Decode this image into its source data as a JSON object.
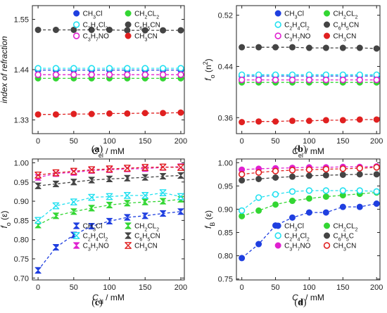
{
  "chart_data": [
    {
      "panel": "(a)",
      "type": "scatter",
      "xlabel_main": "C",
      "xlabel_sub": "el",
      "xlabel_rest": " / mM",
      "ylabel": "index of refraction",
      "ylabel_italic": true,
      "xlim": [
        -8,
        205
      ],
      "ylim": [
        1.3,
        1.58
      ],
      "xticks": [
        0,
        50,
        100,
        150,
        200
      ],
      "yticks": [
        "1.33",
        "1.44",
        "1.55"
      ],
      "ytick_values": [
        1.33,
        1.44,
        1.55
      ],
      "x": [
        0,
        25,
        50,
        75,
        100,
        125,
        150,
        175,
        200
      ],
      "legend": [
        {
          "text": "CH3Cl",
          "parts": [
            [
              "CH",
              ""
            ],
            [
              "3",
              "sub"
            ],
            [
              "Cl",
              ""
            ]
          ]
        },
        {
          "text": "CH2CL2",
          "parts": [
            [
              "CH",
              ""
            ],
            [
              "2",
              "sub"
            ],
            [
              "CL",
              ""
            ],
            [
              "2",
              "sub"
            ]
          ]
        },
        {
          "text": "C2H4Cl2",
          "parts": [
            [
              "C",
              ""
            ],
            [
              "2",
              "sub"
            ],
            [
              "H",
              ""
            ],
            [
              "4",
              "sub"
            ],
            [
              "Cl",
              ""
            ],
            [
              "2",
              "sub"
            ]
          ]
        },
        {
          "text": "C6H5CN",
          "parts": [
            [
              "C",
              ""
            ],
            [
              "6",
              "sub"
            ],
            [
              "H",
              ""
            ],
            [
              "5",
              "sub"
            ],
            [
              "CN",
              ""
            ]
          ]
        },
        {
          "text": "C3H7NO",
          "parts": [
            [
              "C",
              ""
            ],
            [
              "3",
              "sub"
            ],
            [
              "H",
              ""
            ],
            [
              "7",
              "sub"
            ],
            [
              "NO",
              ""
            ]
          ]
        },
        {
          "text": "CH3CN",
          "parts": [
            [
              "CH",
              ""
            ],
            [
              "3",
              "sub"
            ],
            [
              "CN",
              ""
            ]
          ]
        }
      ],
      "series": [
        {
          "name": "CH3Cl",
          "color": "#1f3fe0",
          "marker": "filled-circle",
          "values": [
            1.439,
            1.439,
            1.439,
            1.439,
            1.439,
            1.439,
            1.439,
            1.439,
            1.439
          ]
        },
        {
          "name": "CH2CL2",
          "color": "#33d633",
          "marker": "filled-circle",
          "values": [
            1.421,
            1.421,
            1.421,
            1.421,
            1.421,
            1.421,
            1.421,
            1.421,
            1.421
          ]
        },
        {
          "name": "C2H4Cl2",
          "color": "#22e0f0",
          "marker": "open-circle",
          "values": [
            1.443,
            1.443,
            1.443,
            1.443,
            1.443,
            1.443,
            1.443,
            1.443,
            1.443
          ]
        },
        {
          "name": "C6H5CN",
          "color": "#444444",
          "marker": "filled-circle",
          "values": [
            1.527,
            1.527,
            1.527,
            1.527,
            1.527,
            1.526,
            1.526,
            1.526,
            1.526
          ]
        },
        {
          "name": "C3H7NO",
          "color": "#e020d0",
          "marker": "open-circle",
          "values": [
            1.429,
            1.429,
            1.429,
            1.429,
            1.429,
            1.429,
            1.429,
            1.429,
            1.429
          ]
        },
        {
          "name": "CH3CN",
          "color": "#e02020",
          "marker": "filled-circle",
          "values": [
            1.342,
            1.342,
            1.343,
            1.343,
            1.344,
            1.344,
            1.345,
            1.345,
            1.346
          ]
        }
      ]
    },
    {
      "panel": "(b)",
      "type": "scatter",
      "xlabel_main": "C",
      "xlabel_sub": "el",
      "xlabel_rest": " / mM",
      "ylabel": "f",
      "ylabel_sub": "o",
      "ylabel_rest": " (n",
      "ylabel_sup": "2",
      "ylabel_end": ")",
      "xlim": [
        -8,
        205
      ],
      "ylim": [
        0.335,
        0.535
      ],
      "xticks": [
        0,
        50,
        100,
        150,
        200
      ],
      "yticks": [
        "0.36",
        "0.44",
        "0.52"
      ],
      "ytick_values": [
        0.36,
        0.44,
        0.52
      ],
      "x": [
        0,
        25,
        50,
        75,
        100,
        125,
        150,
        175,
        200
      ],
      "legend": [
        {
          "text": "CH3Cl",
          "parts": [
            [
              "CH",
              ""
            ],
            [
              "3",
              "sub"
            ],
            [
              "Cl",
              ""
            ]
          ]
        },
        {
          "text": "CH2CL2",
          "parts": [
            [
              "CH",
              ""
            ],
            [
              "2",
              "sub"
            ],
            [
              "CL",
              ""
            ],
            [
              "2",
              "sub"
            ]
          ]
        },
        {
          "text": "C2H4Cl2",
          "parts": [
            [
              "C",
              ""
            ],
            [
              "2",
              "sub"
            ],
            [
              "H",
              ""
            ],
            [
              "4",
              "sub"
            ],
            [
              "Cl",
              ""
            ],
            [
              "2",
              "sub"
            ]
          ]
        },
        {
          "text": "C6H5CN",
          "parts": [
            [
              "C",
              ""
            ],
            [
              "6",
              "sub"
            ],
            [
              "H",
              ""
            ],
            [
              "5",
              "sub"
            ],
            [
              "CN",
              ""
            ]
          ]
        },
        {
          "text": "C3H7NO",
          "parts": [
            [
              "C",
              ""
            ],
            [
              "3",
              "sub"
            ],
            [
              "H",
              ""
            ],
            [
              "7",
              "sub"
            ],
            [
              "NO",
              ""
            ]
          ]
        },
        {
          "text": "CH3CN",
          "parts": [
            [
              "CH",
              ""
            ],
            [
              "3",
              "sub"
            ],
            [
              "CN",
              ""
            ]
          ]
        }
      ],
      "series": [
        {
          "name": "CH3Cl",
          "color": "#1f3fe0",
          "marker": "filled-circle",
          "values": [
            0.425,
            0.425,
            0.425,
            0.425,
            0.425,
            0.425,
            0.425,
            0.425,
            0.425
          ]
        },
        {
          "name": "CH2CL2",
          "color": "#33d633",
          "marker": "filled-circle",
          "values": [
            0.415,
            0.415,
            0.415,
            0.415,
            0.415,
            0.415,
            0.415,
            0.415,
            0.415
          ]
        },
        {
          "name": "C2H4Cl2",
          "color": "#22e0f0",
          "marker": "open-circle",
          "values": [
            0.427,
            0.427,
            0.427,
            0.427,
            0.427,
            0.427,
            0.427,
            0.427,
            0.427
          ]
        },
        {
          "name": "C6H5CN",
          "color": "#444444",
          "marker": "filled-circle",
          "values": [
            0.47,
            0.47,
            0.47,
            0.47,
            0.469,
            0.469,
            0.469,
            0.469,
            0.468
          ]
        },
        {
          "name": "C3H7NO",
          "color": "#e020d0",
          "marker": "open-circle",
          "values": [
            0.419,
            0.419,
            0.419,
            0.419,
            0.419,
            0.419,
            0.419,
            0.419,
            0.419
          ]
        },
        {
          "name": "CH3CN",
          "color": "#e02020",
          "marker": "filled-circle",
          "values": [
            0.353,
            0.354,
            0.354,
            0.355,
            0.355,
            0.356,
            0.356,
            0.357,
            0.357
          ]
        }
      ]
    },
    {
      "panel": "(c)",
      "type": "scatter",
      "xlabel_main": "C",
      "xlabel_sub": "el",
      "xlabel_rest": " / mM",
      "ylabel": "f",
      "ylabel_sub": "o",
      "ylabel_rest": " (ε)",
      "xlim": [
        -8,
        205
      ],
      "ylim": [
        0.695,
        1.01
      ],
      "xticks": [
        0,
        50,
        100,
        150,
        200
      ],
      "yticks": [
        "0.70",
        "0.75",
        "0.80",
        "0.85",
        "0.90",
        "0.95",
        "1.00"
      ],
      "ytick_values": [
        0.7,
        0.75,
        0.8,
        0.85,
        0.9,
        0.95,
        1.0
      ],
      "x": [
        0,
        25,
        50,
        75,
        100,
        125,
        150,
        175,
        200
      ],
      "legend": [
        {
          "text": "CH3Cl",
          "parts": [
            [
              "CH",
              ""
            ],
            [
              "3",
              "sub"
            ],
            [
              "Cl",
              ""
            ]
          ]
        },
        {
          "text": "CH2CL2",
          "parts": [
            [
              "CH",
              ""
            ],
            [
              "2",
              "sub"
            ],
            [
              "CL",
              ""
            ],
            [
              "2",
              "sub"
            ]
          ]
        },
        {
          "text": "C2H4Cl2",
          "parts": [
            [
              "C",
              ""
            ],
            [
              "2",
              "sub"
            ],
            [
              "H",
              ""
            ],
            [
              "4",
              "sub"
            ],
            [
              "Cl",
              ""
            ],
            [
              "2",
              "sub"
            ]
          ]
        },
        {
          "text": "C6H5CN",
          "parts": [
            [
              "C",
              ""
            ],
            [
              "6",
              "sub"
            ],
            [
              "H",
              ""
            ],
            [
              "5",
              "sub"
            ],
            [
              "CN",
              ""
            ]
          ]
        },
        {
          "text": "C3H7NO",
          "parts": [
            [
              "C",
              ""
            ],
            [
              "3",
              "sub"
            ],
            [
              "H",
              ""
            ],
            [
              "7",
              "sub"
            ],
            [
              "NO",
              ""
            ]
          ]
        },
        {
          "text": "CH3CN",
          "parts": [
            [
              "CH",
              ""
            ],
            [
              "3",
              "sub"
            ],
            [
              "CN",
              ""
            ]
          ]
        }
      ],
      "series": [
        {
          "name": "CH3Cl",
          "color": "#1f3fe0",
          "marker": "bowtie",
          "values": [
            0.72,
            0.78,
            0.812,
            0.835,
            0.848,
            0.858,
            0.862,
            0.868,
            0.873
          ]
        },
        {
          "name": "CH2CL2",
          "color": "#33d633",
          "marker": "bowtie",
          "values": [
            0.838,
            0.862,
            0.873,
            0.882,
            0.89,
            0.895,
            0.898,
            0.9,
            0.905
          ]
        },
        {
          "name": "C2H4Cl2",
          "color": "#22e0f0",
          "marker": "open-bowtie",
          "values": [
            0.85,
            0.888,
            0.898,
            0.91,
            0.912,
            0.915,
            0.915,
            0.922,
            0.912
          ]
        },
        {
          "name": "C6H5CN",
          "color": "#444444",
          "marker": "bowtie",
          "values": [
            0.94,
            0.945,
            0.95,
            0.955,
            0.958,
            0.96,
            0.962,
            0.965,
            0.967
          ]
        },
        {
          "name": "C3H7NO",
          "color": "#e020d0",
          "marker": "bowtie",
          "values": [
            0.962,
            0.972,
            0.975,
            0.98,
            0.982,
            0.984,
            0.985,
            0.988,
            0.99
          ]
        },
        {
          "name": "CH3CN",
          "color": "#e02020",
          "marker": "open-bowtie",
          "values": [
            0.968,
            0.974,
            0.978,
            0.982,
            0.984,
            0.986,
            0.988,
            0.989,
            0.988
          ]
        }
      ]
    },
    {
      "panel": "(d)",
      "type": "scatter",
      "xlabel_main": "C",
      "xlabel_sub": "el",
      "xlabel_rest": " / mM",
      "ylabel": "f",
      "ylabel_sub": "B",
      "ylabel_rest": " (ε)",
      "xlim": [
        -8,
        205
      ],
      "ylim": [
        0.748,
        1.008
      ],
      "xticks": [
        0,
        50,
        100,
        150,
        200
      ],
      "yticks": [
        "0.75",
        "0.80",
        "0.85",
        "0.90",
        "0.95",
        "1.00"
      ],
      "ytick_values": [
        0.75,
        0.8,
        0.85,
        0.9,
        0.95,
        1.0
      ],
      "x": [
        0,
        25,
        50,
        75,
        100,
        125,
        150,
        175,
        200
      ],
      "legend": [
        {
          "text": "CH3Cl",
          "parts": [
            [
              "CH",
              ""
            ],
            [
              "3",
              "sub"
            ],
            [
              "Cl",
              ""
            ]
          ]
        },
        {
          "text": "CH2CL2",
          "parts": [
            [
              "CH",
              ""
            ],
            [
              "2",
              "sub"
            ],
            [
              "CL",
              ""
            ],
            [
              "2",
              "sub"
            ]
          ]
        },
        {
          "text": "C2H4Cl2",
          "parts": [
            [
              "C",
              ""
            ],
            [
              "2",
              "sub"
            ],
            [
              "H",
              ""
            ],
            [
              "4",
              "sub"
            ],
            [
              "Cl",
              ""
            ],
            [
              "2",
              "sub"
            ]
          ]
        },
        {
          "text": "C6H5C",
          "parts": [
            [
              "C",
              ""
            ],
            [
              "6",
              "sub"
            ],
            [
              "H",
              ""
            ],
            [
              "5",
              "sub"
            ],
            [
              "C",
              ""
            ]
          ]
        },
        {
          "text": "C3H7NO",
          "parts": [
            [
              "C",
              ""
            ],
            [
              "3",
              "sub"
            ],
            [
              "H",
              ""
            ],
            [
              "7",
              "sub"
            ],
            [
              "NO",
              ""
            ]
          ]
        },
        {
          "text": "CH3CN",
          "parts": [
            [
              "CH",
              ""
            ],
            [
              "3",
              "sub"
            ],
            [
              "CN",
              ""
            ]
          ]
        }
      ],
      "series": [
        {
          "name": "CH3Cl",
          "color": "#1f3fe0",
          "marker": "filled-circle",
          "values": [
            0.795,
            0.825,
            0.865,
            0.882,
            0.893,
            0.893,
            0.905,
            0.905,
            0.912
          ]
        },
        {
          "name": "CH2CL2",
          "color": "#33d633",
          "marker": "filled-circle",
          "values": [
            0.885,
            0.897,
            0.91,
            0.918,
            0.923,
            0.927,
            0.93,
            0.933,
            0.936
          ]
        },
        {
          "name": "C2H4Cl2",
          "color": "#22e0f0",
          "marker": "open-circle",
          "values": [
            0.897,
            0.925,
            0.932,
            0.938,
            0.94,
            0.94,
            0.94,
            0.94,
            0.938
          ]
        },
        {
          "name": "C6H5C",
          "color": "#444444",
          "marker": "filled-circle",
          "values": [
            0.962,
            0.965,
            0.968,
            0.97,
            0.972,
            0.973,
            0.974,
            0.975,
            0.975
          ]
        },
        {
          "name": "C3H7NO",
          "color": "#e020d0",
          "marker": "filled-circle",
          "values": [
            0.985,
            0.987,
            0.988,
            0.989,
            0.99,
            0.99,
            0.991,
            0.991,
            0.992
          ]
        },
        {
          "name": "CH3CN",
          "color": "#e02020",
          "marker": "open-circle",
          "values": [
            0.975,
            0.979,
            0.982,
            0.984,
            0.985,
            0.986,
            0.987,
            0.988,
            0.99
          ]
        }
      ]
    }
  ]
}
